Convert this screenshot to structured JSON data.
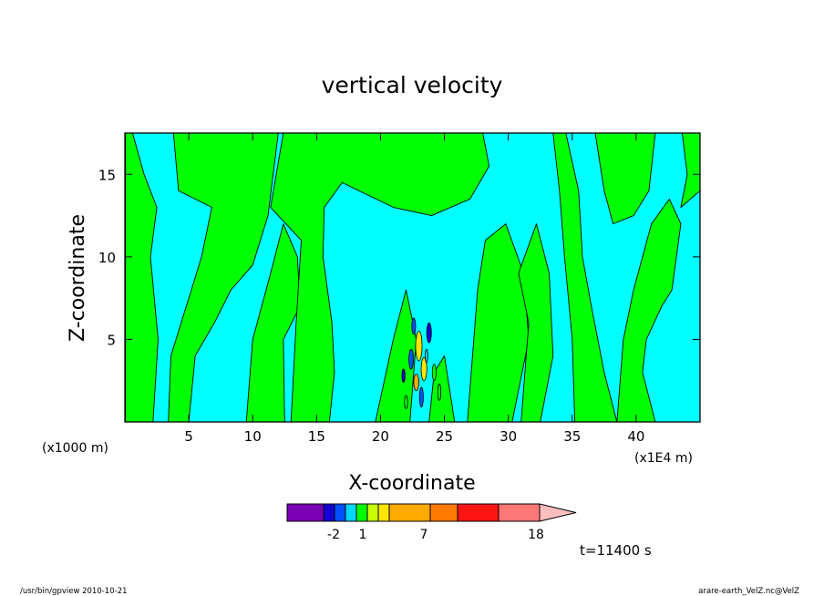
{
  "chart_data": {
    "type": "heatmap",
    "title": "vertical velocity",
    "xlabel": "X-coordinate",
    "ylabel": "Z-coordinate",
    "x_unit": "(x1E4 m)",
    "y_unit": "(x1000 m)",
    "xlim": [
      0,
      45
    ],
    "ylim": [
      0,
      17.5
    ],
    "x_ticks": [
      "5",
      "10",
      "15",
      "20",
      "25",
      "30",
      "35",
      "40"
    ],
    "y_ticks": [
      "5",
      "10",
      "15"
    ],
    "colorbar": {
      "colors": [
        "#7b00b4",
        "#1400d2",
        "#0050ff",
        "#00d7ff",
        "#00ff00",
        "#c8ff00",
        "#ffe600",
        "#ffaa00",
        "#ff7800",
        "#ff1414",
        "#ff7878",
        "#ffbebe"
      ],
      "tick_labels": [
        "-2",
        "1",
        "7",
        "18"
      ]
    },
    "contour_fill": {
      "low": "#00ffff",
      "high": "#00ff00"
    }
  },
  "time_label": "t=11400 s",
  "footer": {
    "left": "/usr/bin/gpview   2010-10-21",
    "right": "arare-earth_VelZ.nc@VelZ"
  }
}
